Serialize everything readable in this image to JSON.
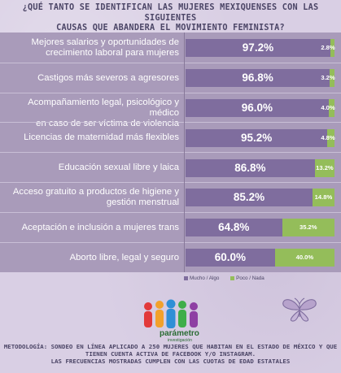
{
  "title": {
    "line1": "¿QUÉ TANTO SE IDENTIFICAN LAS MUJERES MEXIQUENSES CON LAS SIGUIENTES",
    "line2": "CAUSAS QUE ABANDERA EL MOVIMIENTO FEMINISTA?"
  },
  "colors": {
    "series_a": "#7f6d9e",
    "series_b": "#94bd5a",
    "panel": "#a99bba",
    "background": "#d9cfe4"
  },
  "chart_data": {
    "type": "bar",
    "orientation": "horizontal",
    "stacked": true,
    "categories": [
      [
        "Mejores salarios y oportunidades de",
        "crecimiento laboral para mujeres"
      ],
      [
        "Castigos más severos a agresores"
      ],
      [
        "Acompañamiento legal, psicológico y médico",
        "en caso de ser víctima de violencia"
      ],
      [
        "Licencias de maternidad más flexibles"
      ],
      [
        "Educación sexual libre y laica"
      ],
      [
        "Acceso gratuito a productos de higiene y",
        "gestión menstrual"
      ],
      [
        "Aceptación e inclusión a mujeres trans"
      ],
      [
        "Aborto libre, legal  y seguro"
      ]
    ],
    "series": [
      {
        "name": "Mucho / Algo",
        "values": [
          97.2,
          96.8,
          96.0,
          95.2,
          86.8,
          85.2,
          64.8,
          60.0
        ],
        "labels": [
          "97.2%",
          "96.8%",
          "96.0%",
          "95.2%",
          "86.8%",
          "85.2%",
          "64.8%",
          "60.0%"
        ]
      },
      {
        "name": "Poco / Nada",
        "values": [
          2.8,
          3.2,
          4.0,
          4.8,
          13.2,
          14.8,
          35.2,
          40.0
        ],
        "labels": [
          "2.8%",
          "3.2%",
          "4.0%",
          "4.8%",
          "13.2%",
          "14.8%",
          "35.2%",
          "40.0%"
        ]
      }
    ],
    "xlim": [
      0,
      100
    ],
    "legend_position": "bottom",
    "grid": false
  },
  "logo": {
    "name": "parámetro",
    "sub": "investigación"
  },
  "footer": {
    "line1": "METODOLOGÍA: SONDEO EN LÍNEA APLICADO A 250 MUJERES QUE HABITAN EN EL ESTADO DE MÉXICO Y QUE",
    "line2": "TIENEN CUENTA ACTIVA DE FACEBOOK Y/O INSTAGRAM.",
    "line3": "LAS FRECUENCIAS MOSTRADAS CUMPLEN CON LAS CUOTAS DE EDAD ESTATALES"
  }
}
